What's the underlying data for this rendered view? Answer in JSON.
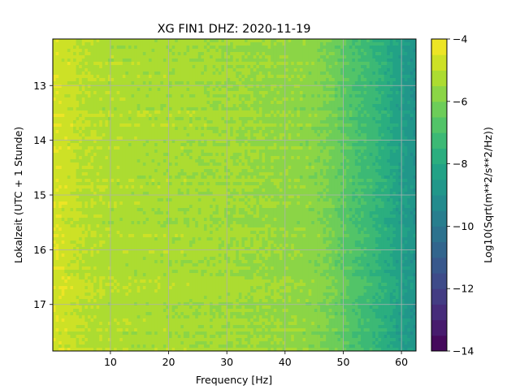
{
  "chart_data": {
    "type": "heatmap",
    "title": "XG FIN1  DHZ: 2020-11-19",
    "xlabel": "Frequency [Hz]",
    "ylabel": "Lokalzeit (UTC + 1 Stunde)",
    "xlim": [
      0.1,
      62.5
    ],
    "ylim": [
      12.15,
      17.85
    ],
    "y_inverted": true,
    "grid": true,
    "x_ticks": [
      10,
      20,
      30,
      40,
      50,
      60
    ],
    "y_ticks": [
      13,
      14,
      15,
      16,
      17
    ],
    "colorbar": {
      "label": "Log10(Sqrt(m**2/s**2/Hz))",
      "range": [
        -14,
        -4
      ],
      "ticks": [
        -4,
        -6,
        -8,
        -10,
        -12,
        -14
      ],
      "colormap": "viridis",
      "levels": 20
    },
    "value_profile": {
      "frequency_hz": [
        0.5,
        2,
        5,
        10,
        20,
        30,
        40,
        45,
        48,
        50,
        52,
        55,
        58,
        60,
        62.5
      ],
      "log10_psd": [
        -4.6,
        -4.7,
        -5.0,
        -5.2,
        -5.3,
        -5.4,
        -5.6,
        -5.75,
        -6.1,
        -6.5,
        -6.9,
        -7.3,
        -7.9,
        -8.4,
        -8.9
      ]
    }
  }
}
